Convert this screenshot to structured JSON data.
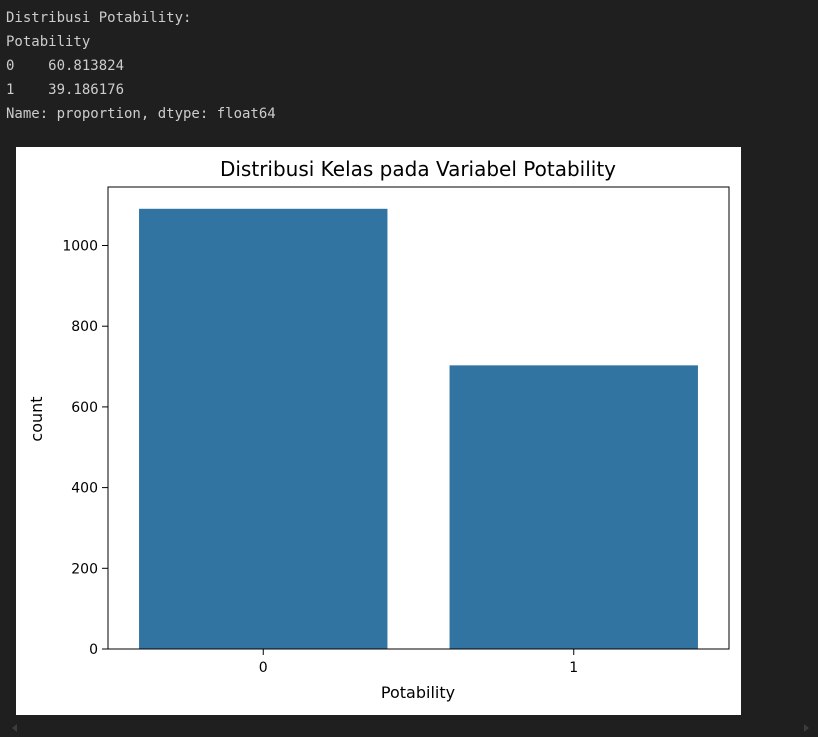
{
  "output": {
    "lines": [
      "Distribusi Potability:",
      "Potability",
      "0    60.813824",
      "1    39.186176",
      "Name: proportion, dtype: float64"
    ]
  },
  "colors": {
    "background": "#1f1f1f",
    "text": "#cccccc",
    "bar": "#3274a1"
  },
  "chart_data": {
    "type": "bar",
    "title": "Distribusi Kelas pada Variabel Potability",
    "xlabel": "Potability",
    "ylabel": "count",
    "categories": [
      "0",
      "1"
    ],
    "values": [
      1091,
      703
    ],
    "ylim": [
      0,
      1145
    ],
    "yticks": [
      0,
      200,
      400,
      600,
      800,
      1000
    ],
    "grid": false,
    "legend": "none"
  }
}
